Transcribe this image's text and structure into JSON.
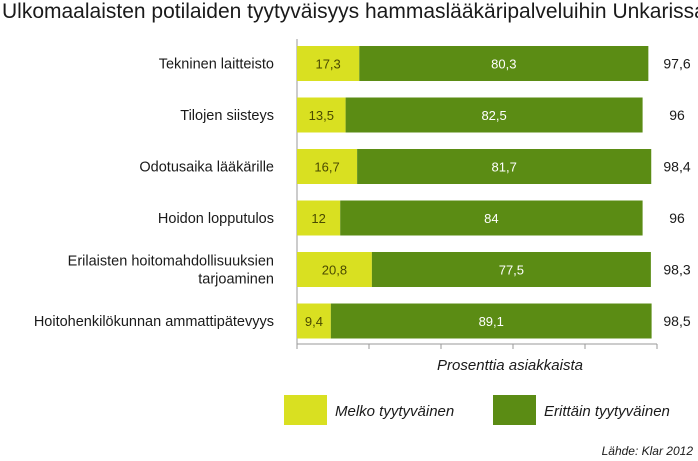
{
  "chart_data": {
    "type": "bar",
    "stacked": true,
    "orientation": "horizontal",
    "title": "Ulkomaalaisten potilaiden tyytyväisyys hammaslääkäripalveluihin Unkarissa",
    "xlabel": "Prosenttia asiakkaista",
    "xlim": [
      0,
      100
    ],
    "categories": [
      [
        "Tekninen laitteisto"
      ],
      [
        "Tilojen siisteys"
      ],
      [
        "Odotusaika lääkärille"
      ],
      [
        "Hoidon lopputulos"
      ],
      [
        "Erilaisten hoitomahdollisuuksien",
        "tarjoaminen"
      ],
      [
        "Hoitohenkilökunnan ammattipätevyys"
      ]
    ],
    "series": [
      {
        "name": "Melko tyytyväinen",
        "color": "#d9e021",
        "values": [
          17.3,
          13.5,
          16.7,
          12,
          20.8,
          9.4
        ],
        "labels": [
          "17,3",
          "13,5",
          "16,7",
          "12",
          "20,8",
          "9,4"
        ]
      },
      {
        "name": "Erittäin tyytyväinen",
        "color": "#5b8c14",
        "values": [
          80.3,
          82.5,
          81.7,
          84,
          77.5,
          89.1
        ],
        "labels": [
          "80,3",
          "82,5",
          "81,7",
          "84",
          "77,5",
          "89,1"
        ]
      }
    ],
    "totals": [
      "97,6",
      "96",
      "98,4",
      "96",
      "98,3",
      "98,5"
    ],
    "legend_position": "bottom",
    "grid": false,
    "source": "Lähde: Klar 2012"
  }
}
